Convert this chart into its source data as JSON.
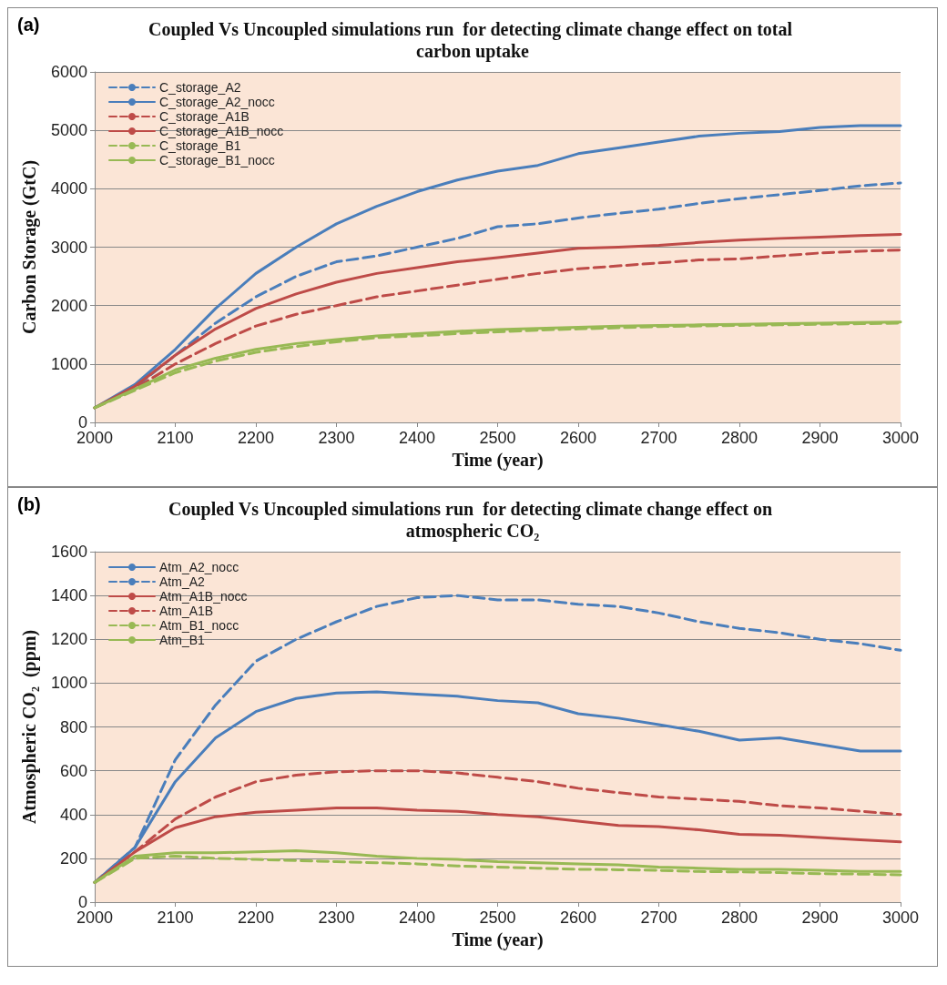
{
  "chart_data": [
    {
      "type": "line",
      "title": "Coupled Vs Uncoupled simulations run  for detecting climate change effect on total carbon uptake",
      "xlabel": "Time (year)",
      "ylabel": "Carbon Storage (GtC)",
      "annotations": [
        "(a)"
      ],
      "x": [
        2000,
        2050,
        2100,
        2150,
        2200,
        2250,
        2300,
        2350,
        2400,
        2450,
        2500,
        2550,
        2600,
        2650,
        2700,
        2750,
        2800,
        2850,
        2900,
        2950,
        3000
      ],
      "xlim": [
        2000,
        3000
      ],
      "xticks": [
        2000,
        2100,
        2200,
        2300,
        2400,
        2500,
        2600,
        2700,
        2800,
        2900,
        3000
      ],
      "ylim": [
        0,
        6000
      ],
      "yticks": [
        0,
        1000,
        2000,
        3000,
        4000,
        5000,
        6000
      ],
      "grid": "y",
      "legend": "top left",
      "marker": "none",
      "series": [
        {
          "name": "C_storage_A2",
          "color": "#4a7ebb",
          "line_style": "dashed",
          "values": [
            250,
            600,
            1150,
            1700,
            2150,
            2500,
            2750,
            2850,
            3000,
            3150,
            3350,
            3400,
            3500,
            3580,
            3650,
            3750,
            3830,
            3900,
            3970,
            4050,
            4100
          ]
        },
        {
          "name": "C_storage_A2_nocc",
          "color": "#4a7ebb",
          "line_style": "solid",
          "values": [
            250,
            650,
            1250,
            1950,
            2550,
            3000,
            3400,
            3700,
            3950,
            4150,
            4300,
            4400,
            4600,
            4700,
            4800,
            4900,
            4950,
            4980,
            5050,
            5080,
            5080
          ]
        },
        {
          "name": "C_storage_A1B",
          "color": "#be4b48",
          "line_style": "dashed",
          "values": [
            250,
            580,
            1000,
            1350,
            1650,
            1850,
            2000,
            2150,
            2250,
            2350,
            2450,
            2550,
            2630,
            2680,
            2730,
            2780,
            2800,
            2850,
            2900,
            2930,
            2950
          ]
        },
        {
          "name": "C_storage_A1B_nocc",
          "color": "#be4b48",
          "line_style": "solid",
          "values": [
            250,
            620,
            1150,
            1600,
            1950,
            2200,
            2400,
            2550,
            2650,
            2750,
            2820,
            2900,
            2980,
            3000,
            3030,
            3080,
            3120,
            3150,
            3170,
            3200,
            3220
          ]
        },
        {
          "name": "C_storage_B1",
          "color": "#98b954",
          "line_style": "dashed",
          "values": [
            250,
            550,
            850,
            1050,
            1200,
            1300,
            1380,
            1450,
            1480,
            1520,
            1550,
            1580,
            1600,
            1620,
            1640,
            1650,
            1660,
            1670,
            1680,
            1690,
            1700
          ]
        },
        {
          "name": "C_storage_B1_nocc",
          "color": "#98b954",
          "line_style": "solid",
          "values": [
            250,
            570,
            900,
            1100,
            1250,
            1350,
            1420,
            1480,
            1520,
            1560,
            1590,
            1610,
            1630,
            1650,
            1660,
            1670,
            1680,
            1690,
            1700,
            1710,
            1720
          ]
        }
      ]
    },
    {
      "type": "line",
      "title": "Coupled Vs Uncoupled simulations run  for detecting climate change effect on atmospheric CO₂",
      "xlabel": "Time (year)",
      "ylabel": "Atmospheric CO₂  (ppm)",
      "annotations": [
        "(b)"
      ],
      "x": [
        2000,
        2050,
        2100,
        2150,
        2200,
        2250,
        2300,
        2350,
        2400,
        2450,
        2500,
        2550,
        2600,
        2650,
        2700,
        2750,
        2800,
        2850,
        2900,
        2950,
        3000
      ],
      "xlim": [
        2000,
        3000
      ],
      "xticks": [
        2000,
        2100,
        2200,
        2300,
        2400,
        2500,
        2600,
        2700,
        2800,
        2900,
        3000
      ],
      "ylim": [
        0,
        1600
      ],
      "yticks": [
        0,
        200,
        400,
        600,
        800,
        1000,
        1200,
        1400,
        1600
      ],
      "grid": "y",
      "legend": "top left",
      "marker": "none",
      "series": [
        {
          "name": "Atm_A2_nocc",
          "color": "#4a7ebb",
          "line_style": "solid",
          "values": [
            90,
            250,
            550,
            750,
            870,
            930,
            955,
            960,
            950,
            940,
            920,
            910,
            860,
            840,
            810,
            780,
            740,
            750,
            720,
            690,
            690
          ]
        },
        {
          "name": "Atm_A2",
          "color": "#4a7ebb",
          "line_style": "dashed",
          "values": [
            90,
            250,
            650,
            900,
            1100,
            1200,
            1280,
            1350,
            1390,
            1400,
            1380,
            1380,
            1360,
            1350,
            1320,
            1280,
            1250,
            1230,
            1200,
            1180,
            1150
          ]
        },
        {
          "name": "Atm_A1B_nocc",
          "color": "#be4b48",
          "line_style": "solid",
          "values": [
            90,
            230,
            340,
            390,
            410,
            420,
            430,
            430,
            420,
            415,
            400,
            390,
            370,
            350,
            345,
            330,
            310,
            305,
            295,
            285,
            275
          ]
        },
        {
          "name": "Atm_A1B",
          "color": "#be4b48",
          "line_style": "dashed",
          "values": [
            90,
            230,
            380,
            480,
            550,
            580,
            595,
            600,
            600,
            590,
            570,
            550,
            520,
            500,
            480,
            470,
            460,
            440,
            430,
            415,
            400
          ]
        },
        {
          "name": "Atm_B1_nocc",
          "color": "#98b954",
          "line_style": "dashed",
          "values": [
            90,
            200,
            210,
            200,
            195,
            190,
            185,
            180,
            175,
            165,
            160,
            155,
            150,
            148,
            145,
            140,
            138,
            135,
            130,
            128,
            125
          ]
        },
        {
          "name": "Atm_B1",
          "color": "#98b954",
          "line_style": "solid",
          "values": [
            90,
            210,
            225,
            225,
            230,
            235,
            225,
            210,
            200,
            195,
            185,
            180,
            175,
            170,
            160,
            155,
            150,
            150,
            145,
            140,
            140
          ]
        }
      ]
    }
  ]
}
